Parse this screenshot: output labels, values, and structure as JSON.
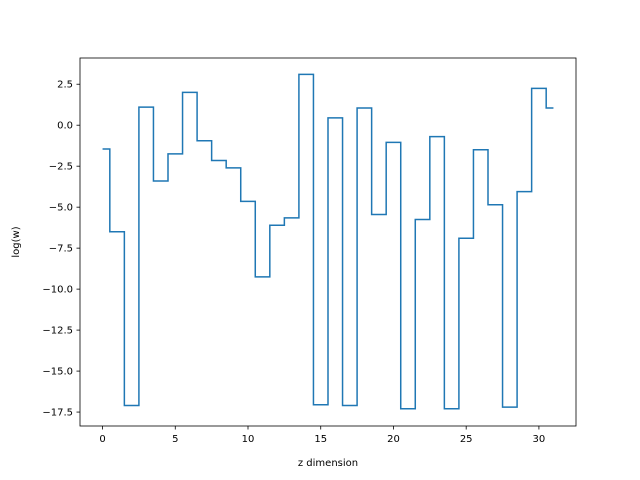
{
  "chart_data": {
    "type": "line",
    "drawstyle": "steps-mid",
    "title": "",
    "xlabel": "z dimension",
    "ylabel": "log(w)",
    "xlim": [
      -1.55,
      32.55
    ],
    "ylim": [
      -18.35,
      4.1
    ],
    "xticks": [
      0,
      5,
      10,
      15,
      20,
      25,
      30
    ],
    "xtick_labels": [
      "0",
      "5",
      "10",
      "15",
      "20",
      "25",
      "30"
    ],
    "yticks": [
      2.5,
      0.0,
      -2.5,
      -5.0,
      -7.5,
      -10.0,
      -12.5,
      -15.0,
      -17.5
    ],
    "ytick_labels": [
      "2.5",
      "0.0",
      "−2.5",
      "−5.0",
      "−7.5",
      "−10.0",
      "−12.5",
      "−15.0",
      "−17.5"
    ],
    "grid": false,
    "color": "#1f77b4",
    "series": [
      {
        "x": [
          0,
          1,
          2,
          3,
          4,
          5,
          6,
          7,
          8,
          9,
          10,
          11,
          12,
          13,
          14,
          15,
          16,
          17,
          18,
          19,
          20,
          21,
          22,
          23,
          24,
          25,
          26,
          27,
          28,
          29,
          30,
          31
        ],
        "values": [
          -1.45,
          -6.5,
          -17.1,
          1.1,
          -3.4,
          -1.75,
          2.0,
          -0.95,
          -2.15,
          -2.6,
          -4.65,
          -9.25,
          -6.1,
          -5.65,
          3.1,
          -17.05,
          0.45,
          -17.1,
          1.05,
          -5.45,
          -1.05,
          -17.3,
          -5.75,
          -0.7,
          -17.3,
          -6.9,
          -1.5,
          -4.85,
          -17.2,
          -4.05,
          2.25,
          1.05
        ]
      }
    ]
  }
}
